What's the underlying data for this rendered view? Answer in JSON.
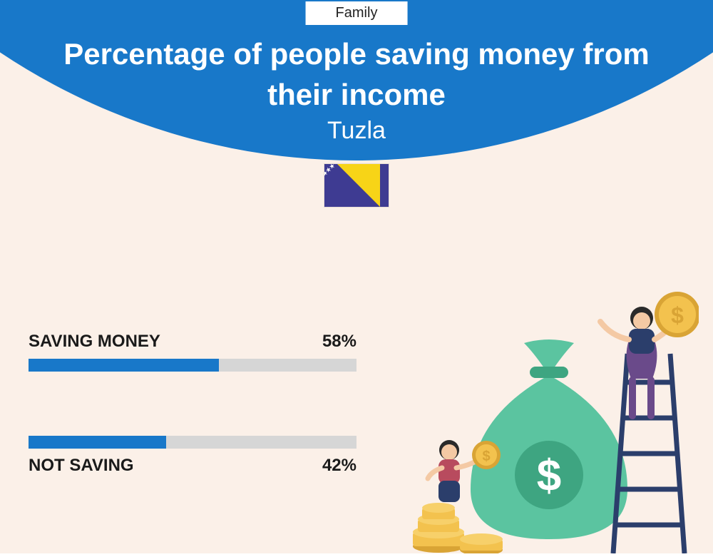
{
  "header": {
    "tag": "Family",
    "title": "Percentage of people saving money from their income",
    "subtitle": "Tuzla",
    "arc_color": "#1878c9",
    "title_color": "#ffffff"
  },
  "background_color": "#fbf0e8",
  "bars": {
    "track_color": "#d6d6d6",
    "fill_color": "#1878c9",
    "label_fontsize": 24,
    "label_fontweight": 700,
    "label_color": "#1a1a1a",
    "items": [
      {
        "label": "SAVING MONEY",
        "value": 58,
        "display": "58%",
        "label_position": "above"
      },
      {
        "label": "NOT SAVING",
        "value": 42,
        "display": "42%",
        "label_position": "below"
      }
    ]
  },
  "illustration": {
    "bag_color": "#5bc4a0",
    "bag_dark": "#3ea581",
    "coin_color": "#f3c24e",
    "coin_dark": "#d9a435",
    "ladder_color": "#2b3e6b",
    "person1_top": "#2b3e6b",
    "person1_bottom": "#6a4a8a",
    "person2_top": "#b84b5e",
    "person2_bottom": "#2b3e6b",
    "skin": "#f4c9a4"
  }
}
